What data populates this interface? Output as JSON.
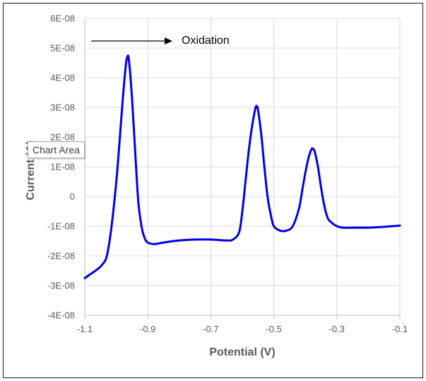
{
  "tooltip": "Chart Area",
  "chart_data": {
    "type": "line",
    "title": "",
    "xlabel": "Potential (V)",
    "ylabel": "Current (A)",
    "xlim": [
      -1.1,
      -0.1
    ],
    "ylim": [
      -4e-08,
      6e-08
    ],
    "x_ticks": [
      -1.1,
      -0.9,
      -0.7,
      -0.5,
      -0.3,
      -0.1
    ],
    "x_tick_labels": [
      "-1.1",
      "-0.9",
      "-0.7",
      "-0.5",
      "-0.3",
      "-0.1"
    ],
    "y_ticks": [
      -4e-08,
      -3e-08,
      -2e-08,
      -1e-08,
      0,
      1e-08,
      2e-08,
      3e-08,
      4e-08,
      5e-08,
      6e-08
    ],
    "y_tick_labels": [
      "-4E-08",
      "-3E-08",
      "-2E-08",
      "-1E-08",
      "0",
      "1E-08",
      "2E-08",
      "3E-08",
      "4E-08",
      "5E-08",
      "6E-08"
    ],
    "grid": true,
    "series_color": "#0000e6",
    "annotation": {
      "text": "Oxidation",
      "arrow_direction": "right"
    },
    "series": [
      {
        "x": [
          -1.1,
          -1.08,
          -1.06,
          -1.045,
          -1.03,
          -1.015,
          -1.0,
          -0.99,
          -0.98,
          -0.97,
          -0.965,
          -0.96,
          -0.95,
          -0.94,
          -0.93,
          -0.92,
          -0.91,
          -0.9,
          -0.88,
          -0.85,
          -0.8,
          -0.75,
          -0.7,
          -0.65,
          -0.63,
          -0.61,
          -0.6,
          -0.59,
          -0.58,
          -0.57,
          -0.56,
          -0.555,
          -0.55,
          -0.54,
          -0.53,
          -0.52,
          -0.51,
          -0.5,
          -0.48,
          -0.46,
          -0.44,
          -0.42,
          -0.41,
          -0.4,
          -0.39,
          -0.38,
          -0.375,
          -0.37,
          -0.36,
          -0.35,
          -0.34,
          -0.33,
          -0.32,
          -0.3,
          -0.28,
          -0.25,
          -0.2,
          -0.15,
          -0.1
        ],
        "y": [
          -2.75e-08,
          -2.6e-08,
          -2.45e-08,
          -2.3e-08,
          -2e-08,
          -1e-08,
          5e-09,
          1.8e-08,
          3.2e-08,
          4.4e-08,
          4.7e-08,
          4.6e-08,
          3.3e-08,
          1.5e-08,
          -2e-09,
          -1e-08,
          -1.4e-08,
          -1.55e-08,
          -1.6e-08,
          -1.55e-08,
          -1.48e-08,
          -1.45e-08,
          -1.45e-08,
          -1.48e-08,
          -1.45e-08,
          -1.2e-08,
          -5e-09,
          5e-09,
          1.5e-08,
          2.3e-08,
          2.9e-08,
          3.05e-08,
          2.9e-08,
          2.1e-08,
          1e-08,
          0.0,
          -6e-09,
          -1e-08,
          -1.15e-08,
          -1.15e-08,
          -1e-08,
          -4e-09,
          2e-09,
          8e-09,
          1.3e-08,
          1.6e-08,
          1.6e-08,
          1.5e-08,
          1e-08,
          3e-09,
          -3e-09,
          -7e-09,
          -8.5e-09,
          -1e-08,
          -1.05e-08,
          -1.05e-08,
          -1.05e-08,
          -1.02e-08,
          -9.8e-09
        ]
      }
    ]
  }
}
